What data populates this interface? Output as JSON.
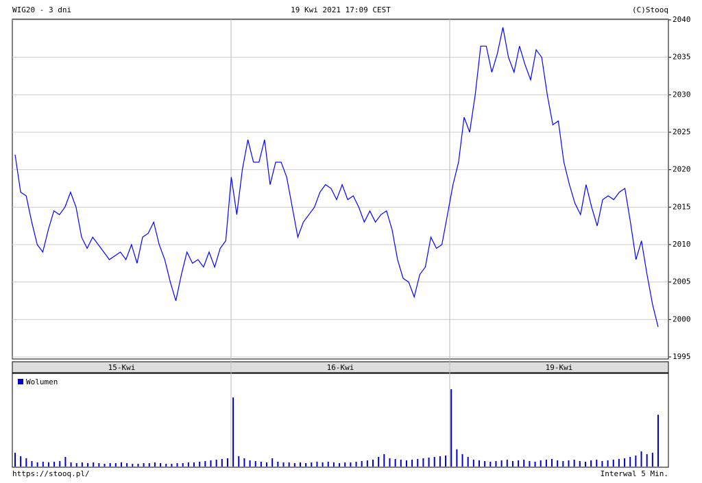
{
  "header": {
    "title": "WIG20 - 3 dni",
    "datetime": "19 Kwi 2021 17:09 CEST",
    "source": "(C)Stooq"
  },
  "footer": {
    "url": "https://stooq.pl/",
    "interval": "Interwal 5 Min."
  },
  "chart_data": [
    {
      "type": "line",
      "color": "#0000ff",
      "day_labels": [
        "15-Kwi",
        "16-Kwi",
        "19-Kwi"
      ],
      "values": [
        2022,
        2017,
        2016.5,
        2013,
        2010,
        2009,
        2012,
        2014.5,
        2014,
        2015,
        2017,
        2015,
        2011,
        2009.5,
        2011,
        2010,
        2009,
        2008,
        2008.5,
        2009,
        2008,
        2010,
        2007.5,
        2011,
        2011.5,
        2013,
        2010,
        2008,
        2005,
        2002.5,
        2006,
        2009,
        2007.5,
        2008,
        2007,
        2009,
        2007,
        2009.5,
        2010.5,
        2019,
        2014,
        2020,
        2024,
        2021,
        2021,
        2024,
        2018,
        2021,
        2021,
        2019,
        2015,
        2011,
        2013,
        2014,
        2015,
        2017,
        2018,
        2017.5,
        2016,
        2018,
        2016,
        2016.5,
        2015,
        2013,
        2014.5,
        2013,
        2014,
        2014.5,
        2012,
        2008,
        2005.5,
        2005,
        2003,
        2006,
        2007,
        2011,
        2009.5,
        2010,
        2014,
        2018,
        2021,
        2027,
        2025,
        2030,
        2036.5,
        2036.5,
        2033,
        2035.5,
        2039,
        2035,
        2033,
        2036.5,
        2034,
        2032,
        2036,
        2035,
        2030,
        2026,
        2026.5,
        2021,
        2018,
        2015.5,
        2014,
        2018,
        2015,
        2012.5,
        2016,
        2016.5,
        2016,
        2017,
        2017.5,
        2013,
        2008,
        2010.5,
        2006,
        2002,
        1999
      ],
      "ylim": [
        1995,
        2040
      ],
      "yticks": [
        1995,
        2000,
        2005,
        2010,
        2015,
        2020,
        2025,
        2030,
        2035,
        2040
      ],
      "grid": true
    },
    {
      "type": "bar",
      "color": "#0000cc",
      "series": [
        {
          "name": "Wolumen",
          "color": "#0000cc",
          "values": [
            20,
            15,
            12,
            8,
            6,
            7,
            6,
            7,
            8,
            14,
            6,
            5,
            6,
            5,
            6,
            5,
            4,
            5,
            5,
            6,
            5,
            4,
            4,
            5,
            5,
            6,
            5,
            4,
            4,
            5,
            5,
            6,
            6,
            7,
            8,
            9,
            10,
            11,
            12,
            100,
            15,
            12,
            9,
            8,
            7,
            6,
            12,
            7,
            6,
            6,
            5,
            6,
            5,
            6,
            7,
            6,
            7,
            6,
            5,
            6,
            6,
            7,
            8,
            9,
            10,
            14,
            18,
            12,
            11,
            10,
            9,
            10,
            11,
            12,
            13,
            14,
            15,
            16,
            112,
            25,
            18,
            14,
            10,
            9,
            8,
            7,
            8,
            9,
            10,
            8,
            9,
            10,
            8,
            7,
            9,
            10,
            11,
            9,
            8,
            9,
            10,
            8,
            7,
            9,
            10,
            8,
            9,
            10,
            11,
            12,
            14,
            16,
            22,
            18,
            20,
            75
          ]
        }
      ],
      "ylim": [
        0,
        120
      ]
    }
  ]
}
